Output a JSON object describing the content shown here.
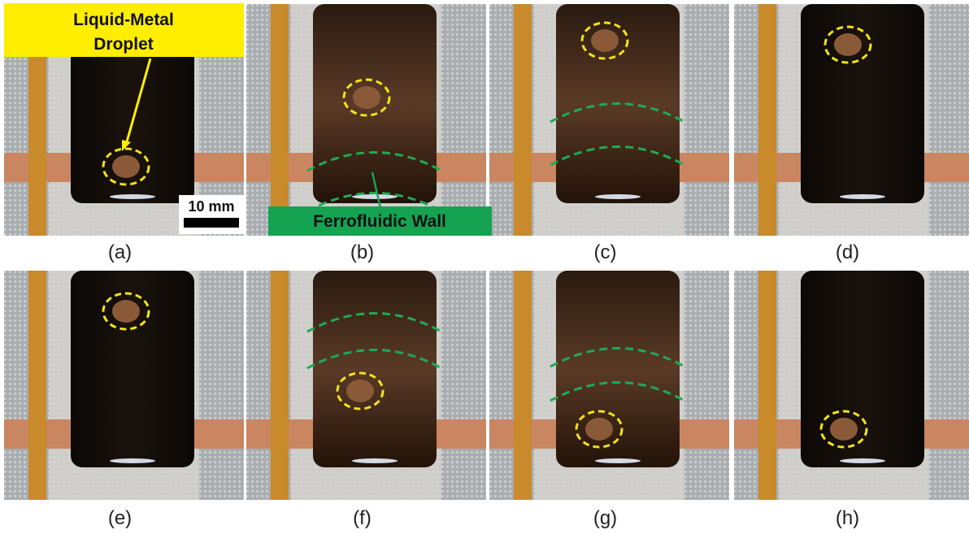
{
  "annotations": {
    "droplet": [
      "Liquid-Metal",
      "Droplet"
    ],
    "scale_bar": "10 mm",
    "wall": "Ferrofluidic Wall"
  },
  "panels": [
    {
      "label": "(a)"
    },
    {
      "label": "(b)"
    },
    {
      "label": "(c)"
    },
    {
      "label": "(d)"
    },
    {
      "label": "(e)"
    },
    {
      "label": "(f)"
    },
    {
      "label": "(g)"
    },
    {
      "label": "(h)"
    }
  ]
}
